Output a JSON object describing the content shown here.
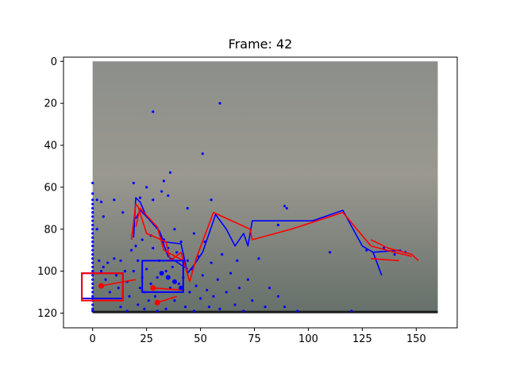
{
  "chart_data": {
    "type": "scatter",
    "title": "Frame: 42",
    "xlabel": "",
    "ylabel": "",
    "xlim": [
      -13.5,
      169
    ],
    "ylim": [
      127,
      -2
    ],
    "y_inverted": true,
    "grid": false,
    "x_ticks": [
      0,
      25,
      50,
      75,
      100,
      125,
      150
    ],
    "y_ticks": [
      0,
      20,
      40,
      60,
      80,
      100,
      120
    ],
    "background_image": {
      "x_extent": [
        0,
        160
      ],
      "y_extent": [
        0,
        120
      ]
    },
    "colors": {
      "blue": "#0000ff",
      "red": "#ff0000",
      "image_top": "#7f8582",
      "image_bottom": "#5f6b63",
      "floor_line": "#1a1a1a"
    },
    "scatter_points": [
      [
        0,
        58
      ],
      [
        0,
        63
      ],
      [
        0,
        66
      ],
      [
        0,
        68
      ],
      [
        0,
        70
      ],
      [
        0,
        72
      ],
      [
        0,
        74
      ],
      [
        0,
        76
      ],
      [
        0,
        78
      ],
      [
        0,
        80
      ],
      [
        0,
        82
      ],
      [
        0,
        84
      ],
      [
        0,
        86
      ],
      [
        0,
        88
      ],
      [
        0,
        90
      ],
      [
        0,
        92
      ],
      [
        0,
        94
      ],
      [
        0,
        96
      ],
      [
        0,
        98
      ],
      [
        0,
        100
      ],
      [
        0,
        102
      ],
      [
        0,
        104
      ],
      [
        0,
        106
      ],
      [
        0,
        108
      ],
      [
        0,
        110
      ],
      [
        0,
        112
      ],
      [
        0,
        114
      ],
      [
        0,
        116
      ],
      [
        0,
        118
      ],
      [
        0,
        119
      ],
      [
        2,
        66
      ],
      [
        2,
        80
      ],
      [
        3,
        95
      ],
      [
        4,
        67
      ],
      [
        4,
        100
      ],
      [
        5,
        74
      ],
      [
        5,
        98
      ],
      [
        6,
        104
      ],
      [
        7,
        96
      ],
      [
        8,
        110
      ],
      [
        10,
        66
      ],
      [
        10,
        94
      ],
      [
        11,
        102
      ],
      [
        12,
        108
      ],
      [
        13,
        95
      ],
      [
        13,
        117
      ],
      [
        14,
        72
      ],
      [
        15,
        100
      ],
      [
        16,
        105
      ],
      [
        16,
        119
      ],
      [
        17,
        112
      ],
      [
        18,
        90
      ],
      [
        19,
        100
      ],
      [
        19,
        58
      ],
      [
        20,
        88
      ],
      [
        21,
        95
      ],
      [
        21,
        116
      ],
      [
        22,
        65
      ],
      [
        22,
        108
      ],
      [
        23,
        85
      ],
      [
        23,
        103
      ],
      [
        24,
        110
      ],
      [
        24,
        118
      ],
      [
        25,
        60
      ],
      [
        25,
        99
      ],
      [
        26,
        114
      ],
      [
        27,
        83
      ],
      [
        27,
        106
      ],
      [
        28,
        24
      ],
      [
        28,
        66
      ],
      [
        28,
        89
      ],
      [
        29,
        112
      ],
      [
        30,
        103
      ],
      [
        30,
        119
      ],
      [
        31,
        95
      ],
      [
        32,
        62
      ],
      [
        33,
        57
      ],
      [
        33,
        85
      ],
      [
        34,
        100
      ],
      [
        34,
        118
      ],
      [
        35,
        64
      ],
      [
        35,
        89
      ],
      [
        36,
        108
      ],
      [
        36,
        53
      ],
      [
        37,
        98
      ],
      [
        38,
        80
      ],
      [
        38,
        114
      ],
      [
        39,
        91
      ],
      [
        40,
        106
      ],
      [
        41,
        86
      ],
      [
        42,
        103
      ],
      [
        43,
        117
      ],
      [
        44,
        70
      ],
      [
        44,
        95
      ],
      [
        45,
        110
      ],
      [
        46,
        99
      ],
      [
        47,
        82
      ],
      [
        47,
        119
      ],
      [
        48,
        107
      ],
      [
        49,
        93
      ],
      [
        50,
        113
      ],
      [
        51,
        44
      ],
      [
        51,
        102
      ],
      [
        52,
        86
      ],
      [
        53,
        109
      ],
      [
        54,
        117
      ],
      [
        55,
        66
      ],
      [
        55,
        96
      ],
      [
        56,
        112
      ],
      [
        58,
        104
      ],
      [
        59,
        20
      ],
      [
        59,
        118
      ],
      [
        60,
        92
      ],
      [
        62,
        110
      ],
      [
        64,
        101
      ],
      [
        66,
        116
      ],
      [
        67,
        95
      ],
      [
        68,
        108
      ],
      [
        70,
        119
      ],
      [
        72,
        104
      ],
      [
        74,
        114
      ],
      [
        77,
        94
      ],
      [
        80,
        117
      ],
      [
        82,
        108
      ],
      [
        86,
        78
      ],
      [
        86,
        112
      ],
      [
        89,
        69
      ],
      [
        89,
        117
      ],
      [
        90,
        70
      ],
      [
        95,
        119
      ],
      [
        110,
        91
      ],
      [
        120,
        119
      ],
      [
        127,
        90
      ],
      [
        135,
        89
      ],
      [
        140,
        92
      ],
      [
        145,
        91
      ]
    ],
    "blue_lines": [
      {
        "x": [
          19,
          20,
          22,
          25,
          31,
          33,
          41,
          44,
          47,
          51,
          57,
          62,
          66,
          70,
          72,
          74,
          102,
          116,
          125,
          130,
          143
        ],
        "y": [
          84,
          65,
          67,
          74,
          81,
          86,
          87,
          101,
          97,
          91,
          73,
          80,
          88,
          82,
          88,
          76,
          76,
          71,
          88,
          91,
          90
        ]
      },
      {
        "x": [
          20,
          22,
          30,
          35,
          44
        ],
        "y": [
          75,
          71,
          79,
          93,
          99
        ]
      },
      {
        "x": [
          130,
          134
        ],
        "y": [
          91,
          102
        ]
      }
    ],
    "red_lines": [
      {
        "x": [
          18,
          20,
          21,
          25,
          34,
          36,
          41,
          45,
          48,
          56,
          73,
          74,
          92,
          116,
          129,
          140,
          148
        ],
        "y": [
          85,
          68,
          69,
          82,
          86,
          95,
          91,
          105,
          94,
          72,
          80,
          85,
          80,
          72,
          88,
          91,
          93
        ]
      },
      {
        "x": [
          20,
          22,
          30,
          33,
          42
        ],
        "y": [
          79,
          70,
          79,
          90,
          95
        ]
      },
      {
        "x": [
          129,
          137,
          148,
          151
        ],
        "y": [
          85,
          89,
          92,
          95
        ]
      },
      {
        "x": [
          129,
          142
        ],
        "y": [
          94,
          95
        ]
      }
    ],
    "red_segments": [
      {
        "x": [
          4,
          20
        ],
        "y": [
          107,
          104
        ]
      },
      {
        "x": [
          28,
          42
        ],
        "y": [
          108,
          109
        ]
      },
      {
        "x": [
          30,
          39
        ],
        "y": [
          115,
          112
        ]
      }
    ],
    "red_points": [
      [
        4,
        107
      ],
      [
        28,
        108
      ],
      [
        30,
        115
      ]
    ],
    "blue_points": [
      [
        32,
        101
      ],
      [
        35,
        103
      ],
      [
        38,
        105
      ],
      [
        41,
        108
      ]
    ],
    "blue_rects": [
      [
        23,
        95,
        42,
        110
      ],
      [
        -5,
        101,
        14,
        113
      ]
    ],
    "red_rects": [
      [
        -5,
        101,
        14,
        114
      ]
    ],
    "floor_line_y": 119.5
  }
}
